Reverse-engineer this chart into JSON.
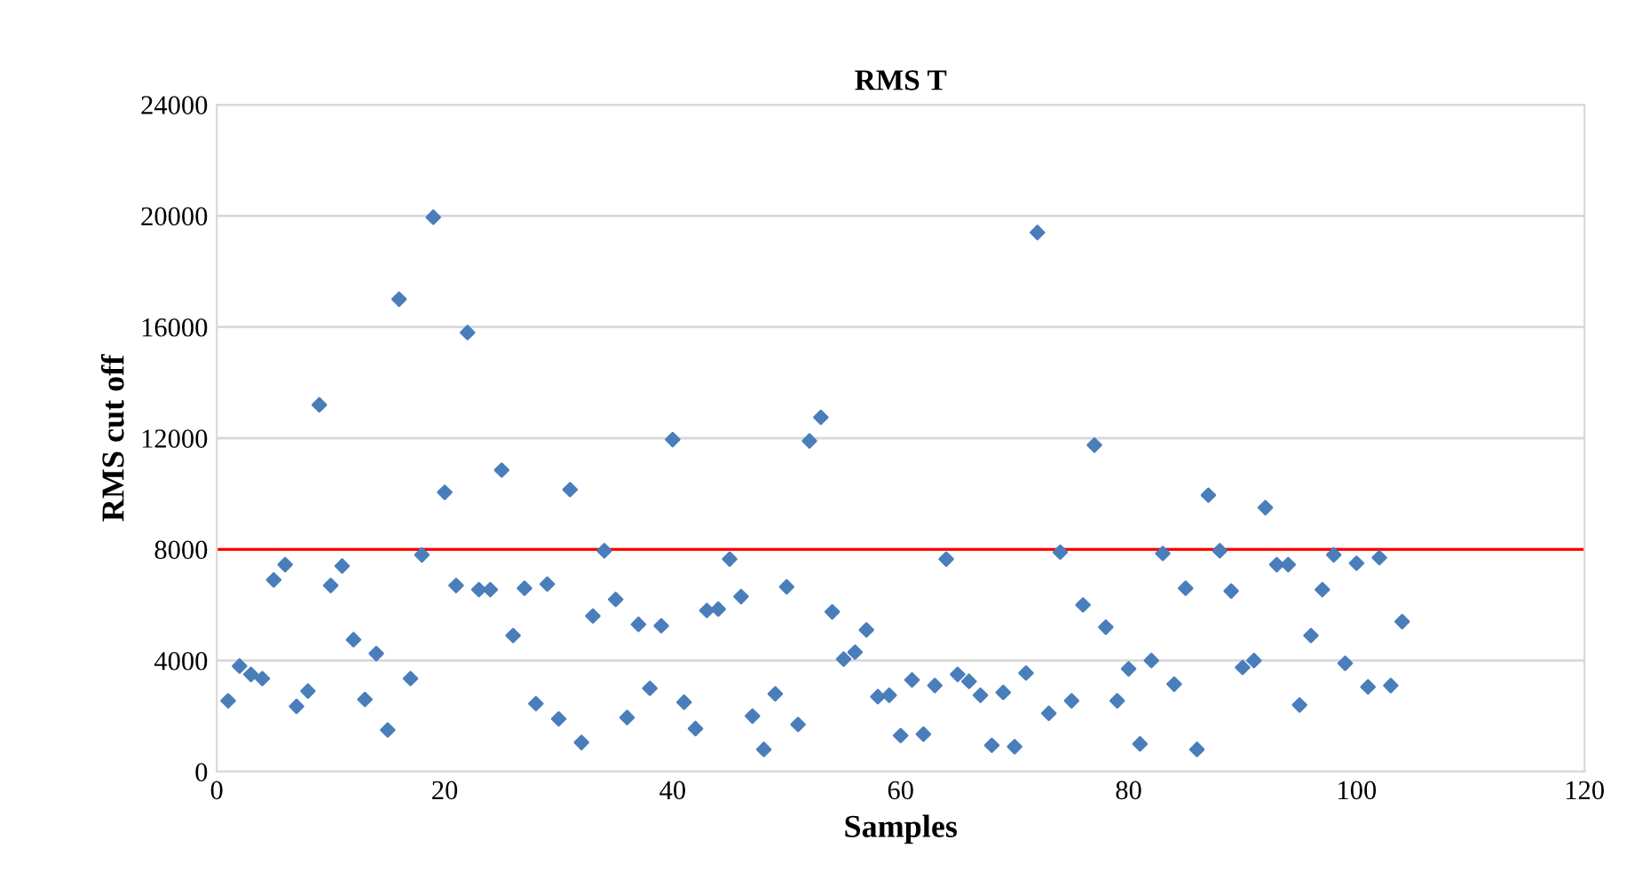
{
  "chart_data": {
    "type": "scatter",
    "title": "RMS T",
    "xlabel": "Samples",
    "ylabel": "RMS cut off",
    "x": [
      1,
      2,
      3,
      4,
      5,
      6,
      7,
      8,
      9,
      10,
      11,
      12,
      13,
      14,
      15,
      16,
      17,
      18,
      19,
      20,
      21,
      22,
      23,
      24,
      25,
      26,
      27,
      28,
      29,
      30,
      31,
      32,
      33,
      34,
      35,
      36,
      37,
      38,
      39,
      40,
      41,
      42,
      43,
      44,
      45,
      46,
      47,
      48,
      49,
      50,
      51,
      52,
      53,
      54,
      55,
      56,
      57,
      58,
      59,
      60,
      61,
      62,
      63,
      64,
      65,
      66,
      67,
      68,
      69,
      70,
      71,
      72,
      73,
      74,
      75,
      76,
      77,
      78,
      79,
      80,
      81,
      82,
      83,
      84,
      85,
      86,
      87,
      88,
      89,
      90,
      91,
      92,
      93,
      94,
      95,
      96,
      97,
      98,
      99,
      100,
      101,
      102,
      103,
      104
    ],
    "series": [
      {
        "color": "#4a7ebb",
        "values": [
          2550,
          3800,
          3500,
          3350,
          6900,
          7450,
          2350,
          2900,
          13200,
          6700,
          7400,
          4750,
          2600,
          4250,
          1500,
          17000,
          3350,
          7800,
          19950,
          10050,
          6700,
          15800,
          6550,
          6550,
          10850,
          4900,
          6600,
          2450,
          6750,
          1900,
          10150,
          1050,
          5600,
          7950,
          6200,
          1950,
          5300,
          3000,
          5250,
          11950,
          2500,
          1550,
          5800,
          5850,
          7650,
          6300,
          2000,
          800,
          2800,
          6650,
          1700,
          11900,
          12750,
          5750,
          4050,
          4300,
          5100,
          2700,
          2750,
          1300,
          3300,
          1350,
          3100,
          7650,
          3500,
          3250,
          2750,
          950,
          2850,
          900,
          3550,
          19400,
          2100,
          7900,
          2550,
          6000,
          11750,
          5200,
          2550,
          3700,
          1000,
          4000,
          7850,
          3150,
          6600,
          800,
          9950,
          7950,
          6500,
          3750,
          4000,
          9500,
          7450,
          7450,
          2400,
          4900,
          6550,
          7800,
          3900,
          7500,
          3050,
          7700,
          3100,
          5400
        ]
      }
    ],
    "xlim": [
      0,
      120
    ],
    "xticks": [
      0,
      20,
      40,
      60,
      80,
      100,
      120
    ],
    "ylim": [
      0,
      24000
    ],
    "yticks": [
      0,
      4000,
      8000,
      12000,
      16000,
      20000,
      24000
    ],
    "ref_lines": [
      {
        "axis": "y",
        "value": 8000,
        "color": "#ff0000"
      }
    ],
    "grid": "y",
    "marker": "diamond"
  }
}
